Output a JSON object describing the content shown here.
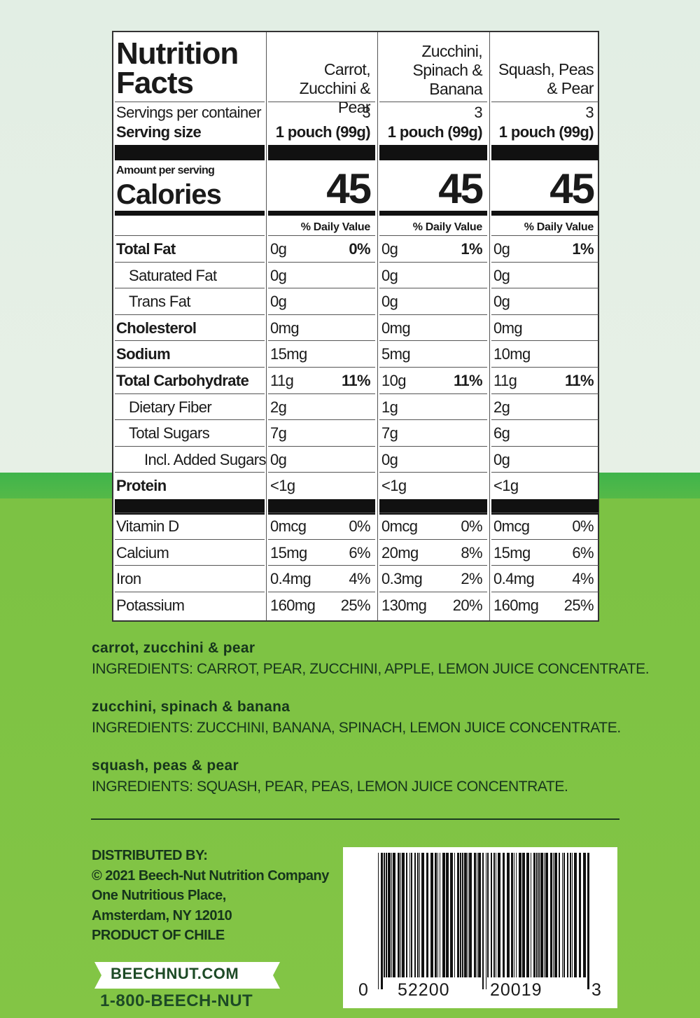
{
  "nutrition_facts": {
    "title": "Nutrition Facts",
    "servings_label": "Servings per container",
    "serving_size_label": "Serving size",
    "amount_label": "Amount per serving",
    "calories_label": "Calories",
    "dv_label": "% Daily Value",
    "products": [
      {
        "name": "Carrot, Zucchini & Pear",
        "servings": "3",
        "serving_size": "1 pouch (99g)",
        "calories": "45"
      },
      {
        "name": "Zucchini, Spinach & Banana",
        "servings": "3",
        "serving_size": "1 pouch (99g)",
        "calories": "45"
      },
      {
        "name": "Squash, Peas & Pear",
        "servings": "3",
        "serving_size": "1 pouch (99g)",
        "calories": "45"
      }
    ],
    "rows": [
      {
        "label": "Total Fat",
        "values": [
          [
            "0g",
            "0%"
          ],
          [
            "0g",
            "1%"
          ],
          [
            "0g",
            "1%"
          ]
        ]
      },
      {
        "label": "Saturated Fat",
        "values": [
          [
            "0g"
          ],
          [
            "0g"
          ],
          [
            "0g"
          ]
        ]
      },
      {
        "label": "Trans Fat",
        "values": [
          [
            "0g"
          ],
          [
            "0g"
          ],
          [
            "0g"
          ]
        ]
      },
      {
        "label": "Cholesterol",
        "values": [
          [
            "0mg"
          ],
          [
            "0mg"
          ],
          [
            "0mg"
          ]
        ]
      },
      {
        "label": "Sodium",
        "values": [
          [
            "15mg"
          ],
          [
            "5mg"
          ],
          [
            "10mg"
          ]
        ]
      },
      {
        "label": "Total Carbohydrate",
        "values": [
          [
            "11g",
            "11%"
          ],
          [
            "10g",
            "11%"
          ],
          [
            "11g",
            "11%"
          ]
        ]
      },
      {
        "label": "Dietary Fiber",
        "values": [
          [
            "2g"
          ],
          [
            "1g"
          ],
          [
            "2g"
          ]
        ]
      },
      {
        "label": "Total Sugars",
        "values": [
          [
            "7g"
          ],
          [
            "7g"
          ],
          [
            "6g"
          ]
        ]
      },
      {
        "label": "Incl. Added Sugars",
        "values": [
          [
            "0g"
          ],
          [
            "0g"
          ],
          [
            "0g"
          ]
        ]
      },
      {
        "label": "Protein",
        "values": [
          [
            "<1g"
          ],
          [
            "<1g"
          ],
          [
            "<1g"
          ]
        ]
      }
    ],
    "vitamins": [
      {
        "label": "Vitamin D",
        "values": [
          [
            "0mcg",
            "0%"
          ],
          [
            "0mcg",
            "0%"
          ],
          [
            "0mcg",
            "0%"
          ]
        ]
      },
      {
        "label": "Calcium",
        "values": [
          [
            "15mg",
            "6%"
          ],
          [
            "20mg",
            "8%"
          ],
          [
            "15mg",
            "6%"
          ]
        ]
      },
      {
        "label": "Iron",
        "values": [
          [
            "0.4mg",
            "4%"
          ],
          [
            "0.3mg",
            "2%"
          ],
          [
            "0.4mg",
            "4%"
          ]
        ]
      },
      {
        "label": "Potassium",
        "values": [
          [
            "160mg",
            "25%"
          ],
          [
            "130mg",
            "20%"
          ],
          [
            "160mg",
            "25%"
          ]
        ]
      }
    ]
  },
  "ingredients": [
    {
      "name": "carrot, zucchini & pear",
      "text": "INGREDIENTS: CARROT, PEAR, ZUCCHINI, APPLE, LEMON JUICE CONCENTRATE."
    },
    {
      "name": "zucchini, spinach & banana",
      "text": "INGREDIENTS: ZUCCHINI, BANANA, SPINACH, LEMON JUICE CONCENTRATE."
    },
    {
      "name": "squash, peas & pear",
      "text": "INGREDIENTS: SQUASH, PEAR, PEAS, LEMON JUICE CONCENTRATE."
    }
  ],
  "distributor": [
    "DISTRIBUTED BY:",
    "© 2021 Beech-Nut Nutrition Company",
    "One Nutritious Place,",
    "Amsterdam, NY 12010",
    "PRODUCT OF CHILE"
  ],
  "website": "BEECHNUT.COM",
  "phone": "1-800-BEECH-NUT",
  "barcode_digits": [
    "0",
    "52200",
    "20019",
    "3"
  ]
}
